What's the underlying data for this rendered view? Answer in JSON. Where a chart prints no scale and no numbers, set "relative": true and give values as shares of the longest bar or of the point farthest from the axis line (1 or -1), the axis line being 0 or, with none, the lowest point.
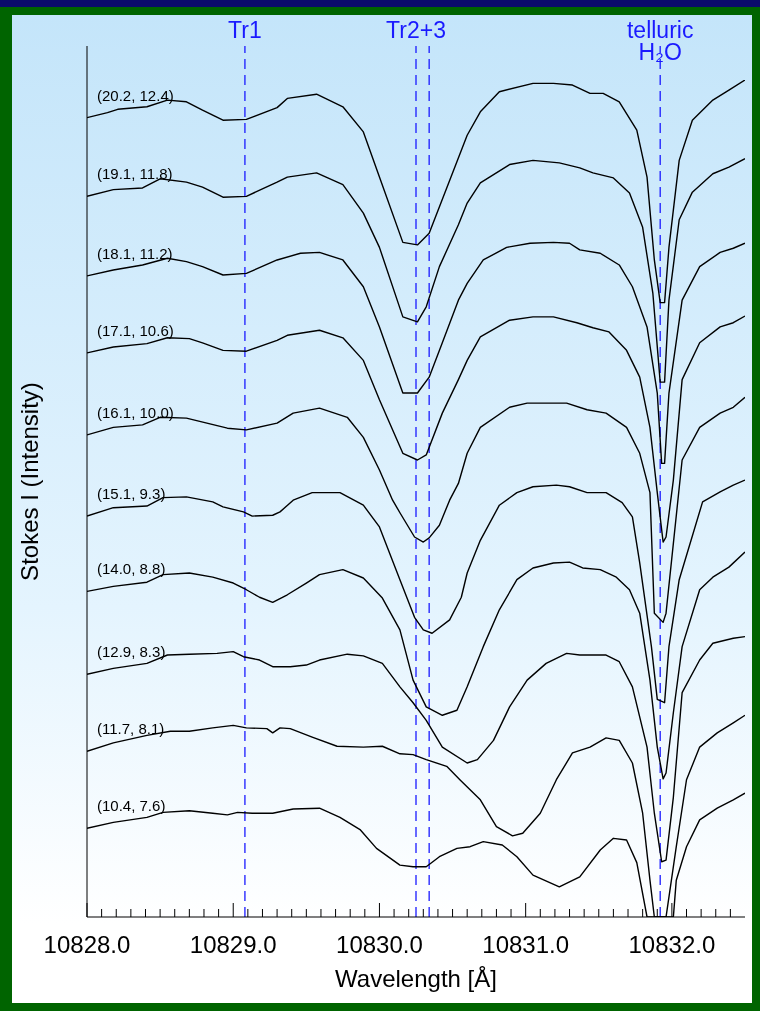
{
  "chart_data": {
    "type": "line",
    "relative": true,
    "xlabel": "Wavelength [Å]",
    "ylabel": "Stokes I (Intensity)",
    "xlim": [
      10828.0,
      10832.5
    ],
    "xticks": [
      {
        "value": 10828,
        "label": "10828.0"
      },
      {
        "value": 10828.1,
        "label": null
      },
      {
        "value": 10828.2,
        "label": null
      },
      {
        "value": 10828.3,
        "label": null
      },
      {
        "value": 10828.4,
        "label": null
      },
      {
        "value": 10828.5,
        "label": null
      },
      {
        "value": 10828.6,
        "label": null
      },
      {
        "value": 10828.7,
        "label": null
      },
      {
        "value": 10828.8,
        "label": null
      },
      {
        "value": 10828.9,
        "label": null
      },
      {
        "value": 10829,
        "label": "10829.0"
      },
      {
        "value": 10829.1,
        "label": null
      },
      {
        "value": 10829.2,
        "label": null
      },
      {
        "value": 10829.3,
        "label": null
      },
      {
        "value": 10829.4,
        "label": null
      },
      {
        "value": 10829.5,
        "label": null
      },
      {
        "value": 10829.6,
        "label": null
      },
      {
        "value": 10829.7,
        "label": null
      },
      {
        "value": 10829.8,
        "label": null
      },
      {
        "value": 10829.9,
        "label": null
      },
      {
        "value": 10830,
        "label": "10830.0"
      },
      {
        "value": 10830.1,
        "label": null
      },
      {
        "value": 10830.2,
        "label": null
      },
      {
        "value": 10830.3,
        "label": null
      },
      {
        "value": 10830.4,
        "label": null
      },
      {
        "value": 10830.5,
        "label": null
      },
      {
        "value": 10830.6,
        "label": null
      },
      {
        "value": 10830.7,
        "label": null
      },
      {
        "value": 10830.8,
        "label": null
      },
      {
        "value": 10830.9,
        "label": null
      },
      {
        "value": 10831,
        "label": "10831.0"
      },
      {
        "value": 10831.1,
        "label": null
      },
      {
        "value": 10831.2,
        "label": null
      },
      {
        "value": 10831.3,
        "label": null
      },
      {
        "value": 10831.4,
        "label": null
      },
      {
        "value": 10831.5,
        "label": null
      },
      {
        "value": 10831.6,
        "label": null
      },
      {
        "value": 10831.7,
        "label": null
      },
      {
        "value": 10831.8,
        "label": null
      },
      {
        "value": 10831.9,
        "label": null
      },
      {
        "value": 10832,
        "label": "10832.0"
      },
      {
        "value": 10832.1,
        "label": null
      },
      {
        "value": 10832.2,
        "label": null
      },
      {
        "value": 10832.3,
        "label": null
      },
      {
        "value": 10832.4,
        "label": null
      }
    ],
    "ref_lines": [
      {
        "axis": "x",
        "value": 10829.08,
        "label": "Tr1",
        "color": "#1a1aff",
        "line_style": "dashed"
      },
      {
        "axis": "x",
        "value": 10830.25,
        "label": "Tr2+3",
        "color": "#1a1aff",
        "line_style": "dashed"
      },
      {
        "axis": "x",
        "value": 10830.34,
        "color": "#1a1aff",
        "line_style": "dashed"
      },
      {
        "axis": "x",
        "value": 10831.92,
        "label": "telluric H₂O",
        "color": "#1a1aff",
        "line_style": "dashed"
      }
    ],
    "series": [
      {
        "name": "(20.2, 12.4)",
        "color": "#000000",
        "x": [
          10828.0,
          10828.14,
          10828.21,
          10828.41,
          10828.55,
          10828.68,
          10828.79,
          10828.93,
          10829.09,
          10829.3,
          10829.37,
          10829.57,
          10829.75,
          10829.89,
          10830.0,
          10830.16,
          10830.26,
          10830.34,
          10830.48,
          10830.6,
          10830.69,
          10830.82,
          10831.05,
          10831.19,
          10831.32,
          10831.44,
          10831.53,
          10831.64,
          10831.76,
          10831.83,
          10831.88,
          10831.92,
          10831.95,
          10831.98,
          10832.05,
          10832.14,
          10832.28,
          10832.39,
          10832.5
        ],
        "values": [
          0.955,
          0.961,
          0.965,
          0.968,
          0.976,
          0.974,
          0.964,
          0.952,
          0.953,
          0.967,
          0.978,
          0.983,
          0.968,
          0.938,
          0.884,
          0.806,
          0.803,
          0.817,
          0.88,
          0.934,
          0.962,
          0.986,
          0.996,
          0.996,
          0.994,
          0.984,
          0.984,
          0.974,
          0.94,
          0.884,
          0.785,
          0.734,
          0.734,
          0.8,
          0.904,
          0.952,
          0.976,
          0.988,
          1.0
        ]
      },
      {
        "name": "(19.1, 11.8)",
        "color": "#000000",
        "x": [
          10828.0,
          10828.18,
          10828.38,
          10828.5,
          10828.68,
          10828.79,
          10828.93,
          10829.09,
          10829.3,
          10829.37,
          10829.57,
          10829.75,
          10829.89,
          10830.0,
          10830.16,
          10830.26,
          10830.32,
          10830.41,
          10830.54,
          10830.6,
          10830.69,
          10830.89,
          10831.05,
          10831.23,
          10831.37,
          10831.46,
          10831.6,
          10831.71,
          10831.8,
          10831.87,
          10831.92,
          10831.95,
          10831.98,
          10832.05,
          10832.14,
          10832.28,
          10832.39,
          10832.5
        ],
        "values": [
          0.861,
          0.869,
          0.871,
          0.882,
          0.878,
          0.872,
          0.86,
          0.861,
          0.878,
          0.884,
          0.889,
          0.875,
          0.841,
          0.8,
          0.717,
          0.711,
          0.729,
          0.777,
          0.827,
          0.853,
          0.877,
          0.899,
          0.904,
          0.901,
          0.895,
          0.889,
          0.883,
          0.865,
          0.824,
          0.745,
          0.639,
          0.639,
          0.737,
          0.833,
          0.866,
          0.888,
          0.896,
          0.906
        ]
      },
      {
        "name": "(18.1, 11.2)",
        "color": "#000000",
        "x": [
          10828.0,
          10828.18,
          10828.38,
          10828.55,
          10828.68,
          10828.79,
          10828.93,
          10829.09,
          10829.3,
          10829.46,
          10829.59,
          10829.75,
          10829.89,
          10830.0,
          10830.16,
          10830.26,
          10830.34,
          10830.43,
          10830.54,
          10830.6,
          10830.71,
          10830.87,
          10831.03,
          10831.19,
          10831.3,
          10831.37,
          10831.51,
          10831.64,
          10831.73,
          10831.83,
          10831.9,
          10831.93,
          10831.95,
          10831.98,
          10832.07,
          10832.19,
          10832.33,
          10832.42,
          10832.5
        ],
        "values": [
          0.766,
          0.773,
          0.779,
          0.787,
          0.783,
          0.777,
          0.767,
          0.769,
          0.785,
          0.793,
          0.794,
          0.785,
          0.753,
          0.705,
          0.626,
          0.626,
          0.645,
          0.686,
          0.737,
          0.757,
          0.785,
          0.8,
          0.805,
          0.806,
          0.805,
          0.797,
          0.793,
          0.779,
          0.753,
          0.705,
          0.626,
          0.542,
          0.542,
          0.626,
          0.737,
          0.777,
          0.794,
          0.799,
          0.805
        ]
      },
      {
        "name": "(17.1, 10.6)",
        "color": "#000000",
        "x": [
          10828.0,
          10828.18,
          10828.41,
          10828.55,
          10828.7,
          10828.79,
          10828.93,
          10829.09,
          10829.3,
          10829.37,
          10829.59,
          10829.75,
          10829.89,
          10830.0,
          10830.16,
          10830.26,
          10830.32,
          10830.43,
          10830.54,
          10830.6,
          10830.69,
          10830.89,
          10831.05,
          10831.19,
          10831.35,
          10831.46,
          10831.57,
          10831.69,
          10831.78,
          10831.85,
          10831.9,
          10831.94,
          10831.96,
          10832.01,
          10832.07,
          10832.19,
          10832.33,
          10832.42,
          10832.5
        ],
        "values": [
          0.674,
          0.681,
          0.685,
          0.692,
          0.691,
          0.686,
          0.677,
          0.676,
          0.689,
          0.695,
          0.701,
          0.692,
          0.665,
          0.618,
          0.554,
          0.546,
          0.552,
          0.602,
          0.642,
          0.665,
          0.693,
          0.713,
          0.717,
          0.717,
          0.71,
          0.704,
          0.699,
          0.677,
          0.645,
          0.585,
          0.507,
          0.448,
          0.454,
          0.522,
          0.642,
          0.686,
          0.705,
          0.71,
          0.718
        ]
      },
      {
        "name": "(16.1, 10.0)",
        "color": "#000000",
        "x": [
          10828.0,
          10828.18,
          10828.38,
          10828.5,
          10828.68,
          10828.82,
          10828.96,
          10829.09,
          10829.3,
          10829.41,
          10829.59,
          10829.78,
          10829.89,
          10830.0,
          10830.09,
          10830.14,
          10830.24,
          10830.3,
          10830.34,
          10830.41,
          10830.48,
          10830.54,
          10830.6,
          10830.69,
          10830.89,
          10831.01,
          10831.28,
          10831.42,
          10831.55,
          10831.69,
          10831.78,
          10831.85,
          10831.88,
          10831.94,
          10831.96,
          10832.07,
          10832.19,
          10832.33,
          10832.42,
          10832.5
        ],
        "values": [
          0.576,
          0.585,
          0.588,
          0.597,
          0.596,
          0.59,
          0.584,
          0.582,
          0.59,
          0.602,
          0.608,
          0.597,
          0.573,
          0.534,
          0.498,
          0.483,
          0.454,
          0.448,
          0.453,
          0.468,
          0.498,
          0.518,
          0.554,
          0.585,
          0.609,
          0.614,
          0.614,
          0.606,
          0.602,
          0.585,
          0.554,
          0.507,
          0.363,
          0.352,
          0.363,
          0.546,
          0.585,
          0.602,
          0.609,
          0.621
        ]
      },
      {
        "name": "(15.1, 9.3)",
        "color": "#000000",
        "x": [
          10828.0,
          10828.18,
          10828.41,
          10828.52,
          10828.68,
          10828.86,
          10828.93,
          10829.07,
          10829.13,
          10829.27,
          10829.32,
          10829.41,
          10829.54,
          10829.73,
          10829.89,
          10830.0,
          10830.14,
          10830.24,
          10830.3,
          10830.36,
          10830.48,
          10830.56,
          10830.6,
          10830.69,
          10830.82,
          10830.94,
          10831.05,
          10831.21,
          10831.3,
          10831.42,
          10831.55,
          10831.66,
          10831.73,
          10831.78,
          10831.86,
          10831.9,
          10831.95,
          10831.98,
          10832.05,
          10832.21,
          10832.33,
          10832.42,
          10832.5
        ],
        "values": [
          0.479,
          0.489,
          0.491,
          0.501,
          0.502,
          0.496,
          0.49,
          0.484,
          0.479,
          0.48,
          0.484,
          0.498,
          0.507,
          0.507,
          0.492,
          0.466,
          0.403,
          0.358,
          0.343,
          0.339,
          0.355,
          0.382,
          0.411,
          0.45,
          0.492,
          0.507,
          0.514,
          0.516,
          0.514,
          0.507,
          0.507,
          0.495,
          0.478,
          0.423,
          0.323,
          0.26,
          0.256,
          0.323,
          0.403,
          0.496,
          0.508,
          0.516,
          0.522
        ]
      },
      {
        "name": "(14.0, 8.8)",
        "color": "#000000",
        "x": [
          10828.0,
          10828.18,
          10828.41,
          10828.52,
          10828.7,
          10828.86,
          10829.0,
          10829.09,
          10829.18,
          10829.27,
          10829.37,
          10829.5,
          10829.59,
          10829.75,
          10829.89,
          10830.02,
          10830.14,
          10830.23,
          10830.32,
          10830.43,
          10830.53,
          10830.6,
          10830.71,
          10830.82,
          10830.94,
          10831.05,
          10831.19,
          10831.3,
          10831.39,
          10831.51,
          10831.62,
          10831.71,
          10831.78,
          10831.85,
          10831.9,
          10831.94,
          10831.96,
          10832.01,
          10832.07,
          10832.19,
          10832.28,
          10832.39,
          10832.5
        ],
        "values": [
          0.389,
          0.395,
          0.4,
          0.409,
          0.411,
          0.406,
          0.399,
          0.391,
          0.382,
          0.376,
          0.385,
          0.399,
          0.409,
          0.415,
          0.405,
          0.381,
          0.343,
          0.283,
          0.251,
          0.241,
          0.247,
          0.275,
          0.323,
          0.367,
          0.403,
          0.417,
          0.423,
          0.424,
          0.417,
          0.415,
          0.406,
          0.391,
          0.363,
          0.283,
          0.203,
          0.165,
          0.172,
          0.244,
          0.323,
          0.391,
          0.406,
          0.418,
          0.436
        ]
      },
      {
        "name": "(12.9, 8.3)",
        "color": "#000000",
        "x": [
          10828.0,
          10828.18,
          10828.41,
          10828.55,
          10828.7,
          10828.89,
          10829.0,
          10829.07,
          10829.18,
          10829.27,
          10829.39,
          10829.5,
          10829.59,
          10829.78,
          10829.89,
          10830.02,
          10830.14,
          10830.23,
          10830.32,
          10830.43,
          10830.6,
          10830.67,
          10830.78,
          10830.89,
          10831.01,
          10831.14,
          10831.28,
          10831.37,
          10831.55,
          10831.64,
          10831.73,
          10831.83,
          10831.88,
          10831.93,
          10831.96,
          10832.01,
          10832.07,
          10832.19,
          10832.28,
          10832.42,
          10832.5
        ],
        "values": [
          0.29,
          0.297,
          0.303,
          0.313,
          0.314,
          0.315,
          0.317,
          0.311,
          0.307,
          0.299,
          0.299,
          0.301,
          0.307,
          0.314,
          0.312,
          0.303,
          0.275,
          0.256,
          0.235,
          0.203,
          0.184,
          0.188,
          0.211,
          0.251,
          0.283,
          0.303,
          0.315,
          0.313,
          0.313,
          0.305,
          0.275,
          0.203,
          0.124,
          0.066,
          0.068,
          0.143,
          0.268,
          0.307,
          0.327,
          0.333,
          0.335
        ]
      },
      {
        "name": "(11.7, 8.1)",
        "color": "#000000",
        "x": [
          10828.0,
          10828.18,
          10828.41,
          10828.57,
          10828.7,
          10828.86,
          10829.0,
          10829.09,
          10829.23,
          10829.27,
          10829.32,
          10829.39,
          10829.54,
          10829.71,
          10829.89,
          10830.02,
          10830.14,
          10830.23,
          10830.32,
          10830.46,
          10830.55,
          10830.69,
          10830.8,
          10830.91,
          10830.98,
          10831.1,
          10831.21,
          10831.32,
          10831.44,
          10831.55,
          10831.64,
          10831.73,
          10831.8,
          10831.85,
          10831.88,
          10831.96,
          10832.03,
          10832.1,
          10832.19,
          10832.31,
          10832.42,
          10832.5
        ],
        "values": [
          0.198,
          0.208,
          0.217,
          0.222,
          0.222,
          0.226,
          0.229,
          0.226,
          0.225,
          0.22,
          0.226,
          0.225,
          0.215,
          0.204,
          0.203,
          0.204,
          0.195,
          0.194,
          0.188,
          0.18,
          0.164,
          0.14,
          0.108,
          0.097,
          0.1,
          0.124,
          0.164,
          0.196,
          0.203,
          0.214,
          0.211,
          0.184,
          0.124,
          0.044,
          0,
          0,
          0.084,
          0.164,
          0.203,
          0.22,
          0.232,
          0.241
        ]
      },
      {
        "name": "(10.4, 7.6)",
        "color": "#000000",
        "x": [
          10828.0,
          10828.18,
          10828.41,
          10828.52,
          10828.7,
          10828.86,
          10828.96,
          10829.03,
          10829.13,
          10829.27,
          10829.41,
          10829.59,
          10829.73,
          10829.87,
          10829.98,
          10830.14,
          10830.23,
          10830.32,
          10830.41,
          10830.53,
          10830.62,
          10830.71,
          10830.84,
          10830.94,
          10831.05,
          10831.23,
          10831.37,
          10831.51,
          10831.6,
          10831.69,
          10831.76,
          10831.83,
          10832.01,
          10832.03,
          10832.1,
          10832.19,
          10832.31,
          10832.42,
          10832.5
        ],
        "values": [
          0.106,
          0.113,
          0.119,
          0.125,
          0.127,
          0.124,
          0.122,
          0.125,
          0.124,
          0.124,
          0.129,
          0.13,
          0.119,
          0.104,
          0.082,
          0.062,
          0.06,
          0.06,
          0.072,
          0.082,
          0.084,
          0.09,
          0.086,
          0.072,
          0.05,
          0.036,
          0.048,
          0.08,
          0.094,
          0.092,
          0.065,
          0,
          0,
          0.044,
          0.084,
          0.116,
          0.13,
          0.14,
          0.148
        ]
      }
    ]
  }
}
